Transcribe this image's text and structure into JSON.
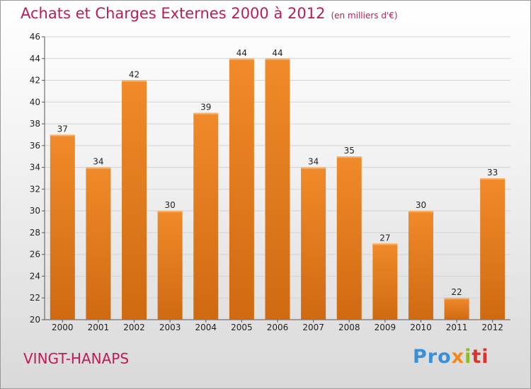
{
  "chart_data": {
    "type": "bar",
    "title": "Achats et Charges Externes 2000 à 2012",
    "subtitle": "(en milliers d'€)",
    "categories": [
      "2000",
      "2001",
      "2002",
      "2003",
      "2004",
      "2005",
      "2006",
      "2007",
      "2008",
      "2009",
      "2010",
      "2011",
      "2012"
    ],
    "values": [
      37,
      34,
      42,
      30,
      39,
      44,
      44,
      34,
      35,
      27,
      30,
      22,
      33
    ],
    "ylim": [
      20,
      46
    ],
    "yticks": [
      "20",
      "22",
      "24",
      "26",
      "28",
      "30",
      "32",
      "34",
      "36",
      "38",
      "40",
      "42",
      "44",
      "46"
    ],
    "grid": true,
    "bar_color": "#f08a2a",
    "bar_color_dark": "#cf6a12"
  },
  "footer": {
    "commune": "VINGT-HANAPS",
    "logo": [
      "Pro",
      "x",
      "i",
      "ti"
    ]
  }
}
